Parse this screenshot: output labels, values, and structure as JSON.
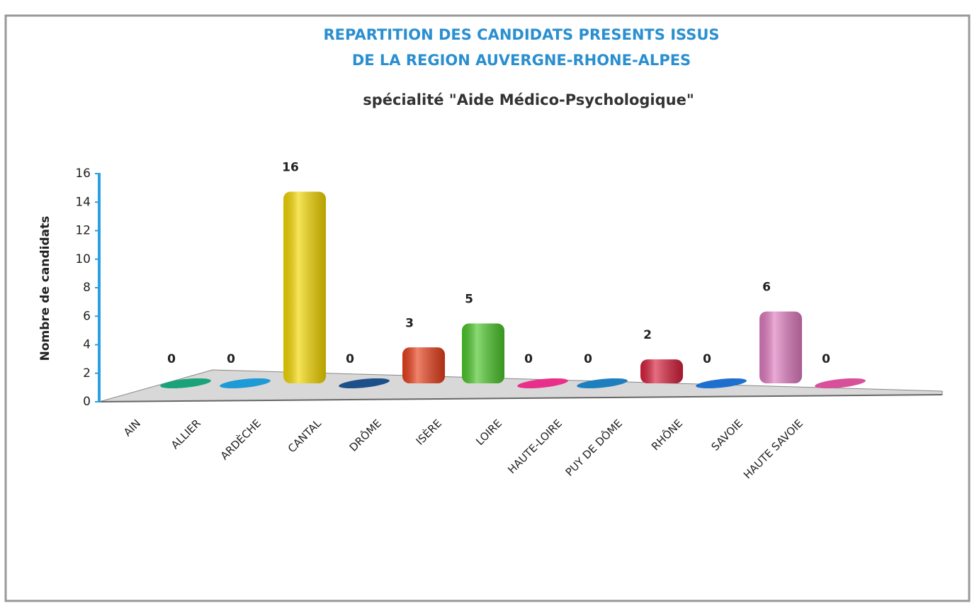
{
  "chart_data": {
    "type": "bar",
    "title": [
      "REPARTITION DES CANDIDATS PRESENTS ISSUS",
      "DE LA REGION AUVERGNE-RHONE-ALPES"
    ],
    "subtitle": "spécialité \"Aide Médico-Psychologique\"",
    "y_label": "Nombre de candidats",
    "categories": [
      "AIN",
      "ALLIER",
      "ARDÈCHE",
      "CANTAL",
      "DRÔME",
      "ISÈRE",
      "LOIRE",
      "HAUTE-LOIRE",
      "PUY DE DÔME",
      "RHÔNE",
      "SAVOIE",
      "HAUTE SAVOIE"
    ],
    "values": [
      0,
      0,
      16,
      0,
      3,
      5,
      0,
      0,
      2,
      0,
      6,
      0
    ],
    "colors": [
      "#1aa37a",
      "#1e9ad6",
      "#f5d800",
      "#1d4f8a",
      "#e8401c",
      "#4cc72a",
      "#e8308a",
      "#1e7fbf",
      "#d8203c",
      "#1f6fcf",
      "#e07cc0",
      "#d84f9a"
    ],
    "ylim": [
      0,
      16
    ],
    "yticks": [
      0,
      2,
      4,
      6,
      8,
      10,
      12,
      14,
      16
    ]
  }
}
